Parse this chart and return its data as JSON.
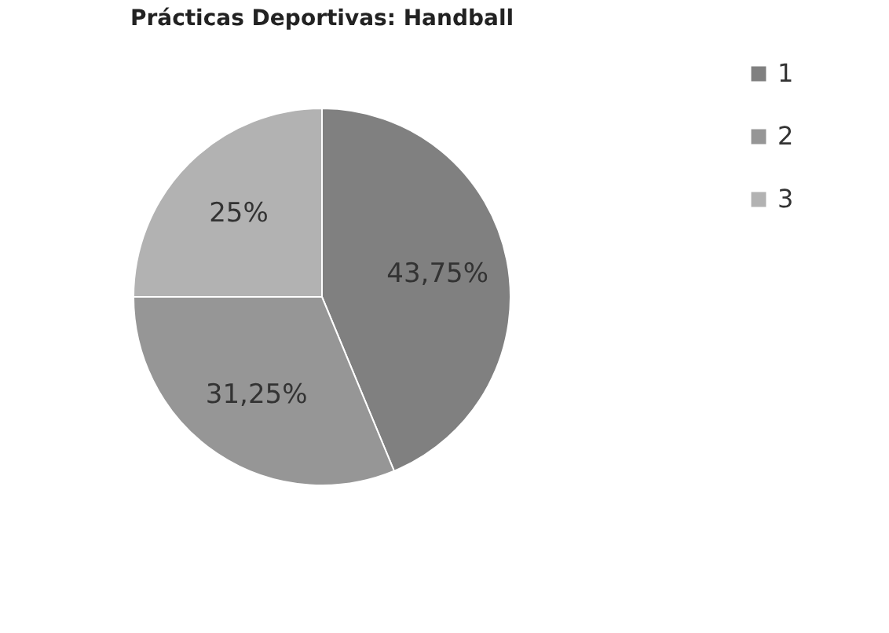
{
  "chart_data": {
    "type": "pie",
    "title": "Prácticas Deportivas: Handball",
    "categories": [
      "1",
      "2",
      "3"
    ],
    "values": [
      43.75,
      31.25,
      25
    ],
    "value_labels": [
      "43,75%",
      "31,25%",
      "25%"
    ],
    "colors": [
      "#808080",
      "#969696",
      "#b2b2b2"
    ],
    "legend": "right"
  }
}
